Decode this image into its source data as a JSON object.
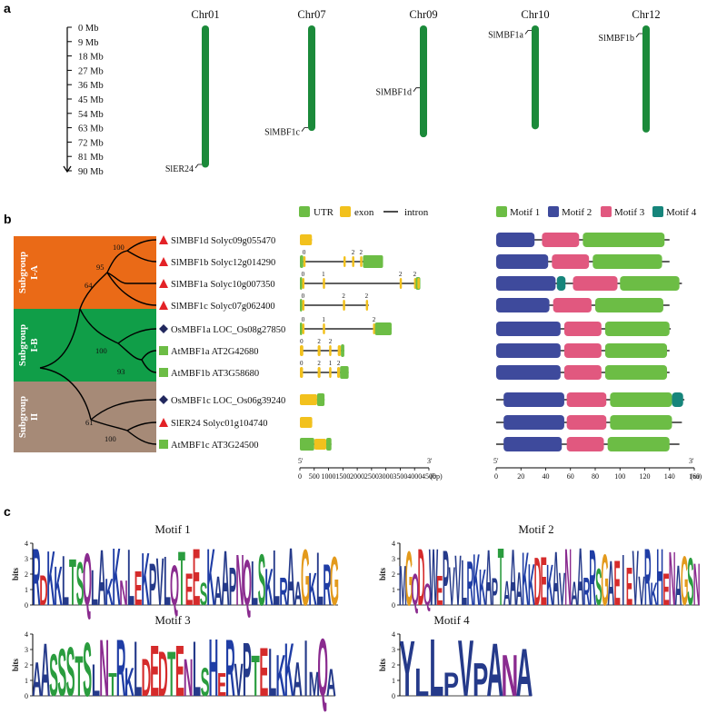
{
  "panels": {
    "a": "a",
    "b": "b",
    "c": "c"
  },
  "panel_a": {
    "scale_ticks": [
      "0 Mb",
      "9 Mb",
      "18 Mb",
      "27 Mb",
      "36 Mb",
      "45 Mb",
      "54 Mb",
      "63 Mb",
      "72 Mb",
      "81 Mb",
      "90 Mb"
    ],
    "chromosomes": [
      {
        "name": "Chr01",
        "length_mb": 88,
        "genes": [
          {
            "name": "SlER24",
            "pos_mb": 86
          }
        ]
      },
      {
        "name": "Chr07",
        "length_mb": 65,
        "genes": [
          {
            "name": "SlMBF1c",
            "pos_mb": 63
          }
        ]
      },
      {
        "name": "Chr09",
        "length_mb": 69,
        "genes": [
          {
            "name": "SlMBF1d",
            "pos_mb": 38
          }
        ]
      },
      {
        "name": "Chr10",
        "length_mb": 64,
        "genes": [
          {
            "name": "SlMBF1a",
            "pos_mb": 2
          }
        ]
      },
      {
        "name": "Chr12",
        "length_mb": 66,
        "genes": [
          {
            "name": "SlMBF1b",
            "pos_mb": 4
          }
        ]
      }
    ]
  },
  "panel_b": {
    "subgroups": [
      {
        "line1": "Subgroup",
        "line2": "I-A",
        "color": "#ea6a17"
      },
      {
        "line1": "Subgroup",
        "line2": "I-B",
        "color": "#109e48"
      },
      {
        "line1": "Subgroup",
        "line2": "II",
        "color": "#a68a77"
      }
    ],
    "bootstrap": [
      "100",
      "95",
      "64",
      "100",
      "93",
      "61",
      "100"
    ],
    "genes": [
      {
        "label": "SlMBF1d Solyc09g055470",
        "marker": "triangle"
      },
      {
        "label": "SlMBF1b Solyc12g014290",
        "marker": "triangle"
      },
      {
        "label": "SlMBF1a Solyc10g007350",
        "marker": "triangle"
      },
      {
        "label": "SlMBF1c Solyc07g062400",
        "marker": "triangle"
      },
      {
        "label": "OsMBF1a LOC_Os08g27850",
        "marker": "diamond"
      },
      {
        "label": "AtMBF1a AT2G42680",
        "marker": "square"
      },
      {
        "label": "AtMBF1b AT3G58680",
        "marker": "square"
      },
      {
        "label": "OsMBF1c LOC_Os06g39240",
        "marker": "diamond"
      },
      {
        "label": "SlER24 Solyc01g104740",
        "marker": "triangle"
      },
      {
        "label": "AtMBF1c AT3G24500",
        "marker": "square"
      }
    ],
    "marker_colors": {
      "triangle": "#e32227",
      "diamond": "#22285e",
      "square": "#6cbd45"
    },
    "gene_legend": {
      "utr": "UTR",
      "exon": "exon",
      "intron": "intron"
    },
    "gene_colors": {
      "utr": "#6cbd45",
      "exon": "#f2c11d"
    },
    "gene_axis": {
      "start": "5'",
      "end": "3'",
      "ticks": [
        "0",
        "500",
        "1000",
        "1500",
        "2000",
        "2500",
        "3000",
        "3500",
        "4000",
        "4500"
      ],
      "unit": "(bp)"
    },
    "phase_labels": [
      "0",
      "1",
      "2"
    ],
    "motif_legend": [
      "Motif 1",
      "Motif 2",
      "Motif 3",
      "Motif 4"
    ],
    "motif_colors": [
      "#6cbd45",
      "#3e4a9c",
      "#e1587f",
      "#16857b"
    ],
    "motif_axis": {
      "start": "5'",
      "end": "3'",
      "ticks": [
        "0",
        "20",
        "40",
        "60",
        "80",
        "100",
        "120",
        "140",
        "160"
      ],
      "unit": "(aa)"
    }
  },
  "panel_c": {
    "logos": [
      {
        "title": "Motif 1",
        "sequence": "RDKKLTSQLAKKNLEKPVLQTEESKAAPNQLSKLRAAGKLRG"
      },
      {
        "title": "Motif 2",
        "sequence": "MGQDQWEPVVLRKKAPTAAAKKDEKAVNAARRSGAEIEVVRKHENAGSN"
      },
      {
        "title": "Motif 3",
        "sequence": "AASSSTSLNTRKLDEDTENLSHERVPTELKKAIMQA"
      },
      {
        "title": "Motif 4",
        "sequence": "YLLPVPANA"
      }
    ],
    "y_label": "bits",
    "y_ticks": [
      "0",
      "1",
      "2",
      "3",
      "4"
    ]
  }
}
